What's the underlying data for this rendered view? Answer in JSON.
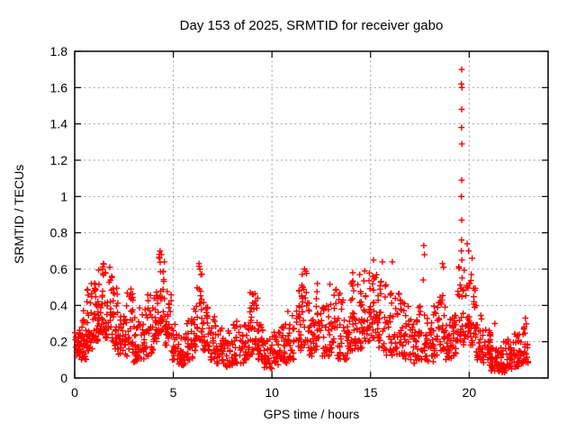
{
  "chart_data": {
    "type": "scatter",
    "title": "Day 153 of 2025, SRMTID for receiver gabo",
    "xlabel": "GPS time / hours",
    "ylabel": "SRMTID / TECUs",
    "series_name": "SRMTID",
    "xlim": [
      0,
      24
    ],
    "ylim": [
      0,
      1.8
    ],
    "xticks": [
      {
        "v": 0,
        "label": "0"
      },
      {
        "v": 5,
        "label": "5"
      },
      {
        "v": 10,
        "label": "10"
      },
      {
        "v": 15,
        "label": "15"
      },
      {
        "v": 20,
        "label": "20"
      }
    ],
    "yticks": [
      {
        "v": 0,
        "label": "0"
      },
      {
        "v": 0.2,
        "label": "0.2"
      },
      {
        "v": 0.4,
        "label": "0.4"
      },
      {
        "v": 0.6,
        "label": "0.6"
      },
      {
        "v": 0.8,
        "label": "0.8"
      },
      {
        "v": 1,
        "label": "1"
      },
      {
        "v": 1.2,
        "label": "1.2"
      },
      {
        "v": 1.4,
        "label": "1.4"
      },
      {
        "v": 1.6,
        "label": "1.6"
      },
      {
        "v": 1.8,
        "label": "1.8"
      }
    ],
    "grid": true,
    "legend": false,
    "marker": {
      "shape": "plus",
      "color": "#ff0000",
      "size": 7
    },
    "grid_color": "#a0a0a0",
    "frame_color": "#000000",
    "background": "#ffffff",
    "time_range_hours": [
      0,
      23.0
    ],
    "envelope_note": "dense scatter summarized as time bins: [t_start, t_end, y_min, y_max, n_points]",
    "envelope": [
      [
        0.0,
        0.3,
        0.12,
        0.28,
        24
      ],
      [
        0.3,
        0.6,
        0.1,
        0.38,
        28
      ],
      [
        0.6,
        0.9,
        0.15,
        0.5,
        32
      ],
      [
        0.9,
        1.2,
        0.2,
        0.55,
        32
      ],
      [
        1.2,
        1.5,
        0.25,
        0.63,
        30
      ],
      [
        1.5,
        1.9,
        0.22,
        0.6,
        32
      ],
      [
        1.9,
        2.2,
        0.16,
        0.5,
        28
      ],
      [
        2.2,
        2.6,
        0.13,
        0.36,
        28
      ],
      [
        2.6,
        2.95,
        0.12,
        0.48,
        26
      ],
      [
        2.95,
        3.2,
        0.08,
        0.35,
        22
      ],
      [
        3.2,
        3.6,
        0.1,
        0.4,
        28
      ],
      [
        3.6,
        4.0,
        0.12,
        0.47,
        28
      ],
      [
        4.0,
        4.25,
        0.2,
        0.58,
        24
      ],
      [
        4.25,
        4.55,
        0.25,
        0.7,
        30
      ],
      [
        4.55,
        4.9,
        0.18,
        0.5,
        26
      ],
      [
        4.9,
        5.15,
        0.1,
        0.3,
        20
      ],
      [
        5.15,
        5.6,
        0.07,
        0.25,
        32
      ],
      [
        5.6,
        6.0,
        0.1,
        0.33,
        28
      ],
      [
        6.0,
        6.2,
        0.15,
        0.45,
        16
      ],
      [
        6.2,
        6.5,
        0.2,
        0.63,
        26
      ],
      [
        6.5,
        6.8,
        0.15,
        0.45,
        24
      ],
      [
        6.8,
        7.2,
        0.1,
        0.35,
        26
      ],
      [
        7.2,
        7.6,
        0.08,
        0.28,
        26
      ],
      [
        7.6,
        8.0,
        0.06,
        0.26,
        26
      ],
      [
        8.0,
        8.3,
        0.08,
        0.32,
        20
      ],
      [
        8.3,
        8.7,
        0.08,
        0.3,
        26
      ],
      [
        8.7,
        9.0,
        0.12,
        0.42,
        24
      ],
      [
        9.0,
        9.3,
        0.15,
        0.47,
        24
      ],
      [
        9.3,
        9.6,
        0.1,
        0.32,
        24
      ],
      [
        9.6,
        10.0,
        0.05,
        0.22,
        26
      ],
      [
        10.0,
        10.4,
        0.07,
        0.27,
        26
      ],
      [
        10.4,
        10.8,
        0.08,
        0.3,
        26
      ],
      [
        10.8,
        11.2,
        0.1,
        0.38,
        26
      ],
      [
        11.2,
        11.5,
        0.15,
        0.52,
        24
      ],
      [
        11.5,
        11.8,
        0.18,
        0.6,
        24
      ],
      [
        11.8,
        12.1,
        0.12,
        0.42,
        24
      ],
      [
        12.1,
        12.5,
        0.15,
        0.53,
        26
      ],
      [
        12.5,
        12.9,
        0.12,
        0.42,
        26
      ],
      [
        12.9,
        13.3,
        0.14,
        0.52,
        26
      ],
      [
        13.3,
        13.7,
        0.1,
        0.48,
        26
      ],
      [
        13.7,
        14.0,
        0.1,
        0.32,
        20
      ],
      [
        14.0,
        14.3,
        0.15,
        0.55,
        24
      ],
      [
        14.3,
        14.6,
        0.15,
        0.55,
        24
      ],
      [
        14.6,
        15.0,
        0.2,
        0.6,
        28
      ],
      [
        15.0,
        15.4,
        0.22,
        0.62,
        28
      ],
      [
        15.4,
        15.8,
        0.15,
        0.58,
        26
      ],
      [
        15.8,
        16.2,
        0.12,
        0.5,
        26
      ],
      [
        16.2,
        16.6,
        0.12,
        0.5,
        26
      ],
      [
        16.6,
        17.0,
        0.1,
        0.42,
        26
      ],
      [
        17.0,
        17.4,
        0.08,
        0.35,
        26
      ],
      [
        17.4,
        17.8,
        0.1,
        0.4,
        26
      ],
      [
        17.8,
        18.2,
        0.08,
        0.35,
        26
      ],
      [
        18.2,
        18.5,
        0.12,
        0.42,
        20
      ],
      [
        18.5,
        18.8,
        0.15,
        0.6,
        24
      ],
      [
        18.8,
        19.1,
        0.1,
        0.38,
        24
      ],
      [
        19.1,
        19.4,
        0.12,
        0.4,
        24
      ],
      [
        19.4,
        19.75,
        0.18,
        0.62,
        28
      ],
      [
        19.75,
        20.05,
        0.2,
        0.55,
        24
      ],
      [
        20.05,
        20.35,
        0.18,
        0.6,
        24
      ],
      [
        20.35,
        20.7,
        0.1,
        0.35,
        26
      ],
      [
        20.7,
        21.1,
        0.06,
        0.27,
        28
      ],
      [
        21.1,
        21.5,
        0.04,
        0.22,
        30
      ],
      [
        21.5,
        21.9,
        0.03,
        0.2,
        30
      ],
      [
        21.9,
        22.3,
        0.05,
        0.22,
        30
      ],
      [
        22.3,
        22.6,
        0.06,
        0.25,
        26
      ],
      [
        22.6,
        23.0,
        0.08,
        0.3,
        28
      ]
    ],
    "outliers_note": "individually visible high points [t_hours, SRMTID_TECUs]; tall spike column at ~19.6 h peaks at 1.70",
    "outliers": [
      [
        19.62,
        1.7
      ],
      [
        19.6,
        1.62
      ],
      [
        19.63,
        1.6
      ],
      [
        19.62,
        1.48
      ],
      [
        19.61,
        1.38
      ],
      [
        19.63,
        1.29
      ],
      [
        19.62,
        1.09
      ],
      [
        19.6,
        1.0
      ],
      [
        19.62,
        0.87
      ],
      [
        19.61,
        0.76
      ],
      [
        19.6,
        0.7
      ],
      [
        19.63,
        0.65
      ],
      [
        19.9,
        0.74
      ],
      [
        19.97,
        0.7
      ],
      [
        20.15,
        0.66
      ],
      [
        17.7,
        0.73
      ],
      [
        17.73,
        0.68
      ],
      [
        17.67,
        0.54
      ],
      [
        4.33,
        0.7
      ],
      [
        4.4,
        0.68
      ],
      [
        4.3,
        0.66
      ],
      [
        1.45,
        0.63
      ],
      [
        1.42,
        0.6
      ],
      [
        1.78,
        0.61
      ],
      [
        6.3,
        0.63
      ],
      [
        6.35,
        0.6
      ],
      [
        15.15,
        0.65
      ],
      [
        15.6,
        0.64
      ],
      [
        16.1,
        0.64
      ],
      [
        14.1,
        0.58
      ],
      [
        14.45,
        0.57
      ],
      [
        8.9,
        0.47
      ],
      [
        12.3,
        0.52
      ],
      [
        2.85,
        0.49
      ],
      [
        9.05,
        0.46
      ],
      [
        18.65,
        0.63
      ],
      [
        18.7,
        0.61
      ],
      [
        11.65,
        0.6
      ],
      [
        0.85,
        0.52
      ],
      [
        22.85,
        0.33
      ],
      [
        21.3,
        0.3
      ]
    ]
  }
}
